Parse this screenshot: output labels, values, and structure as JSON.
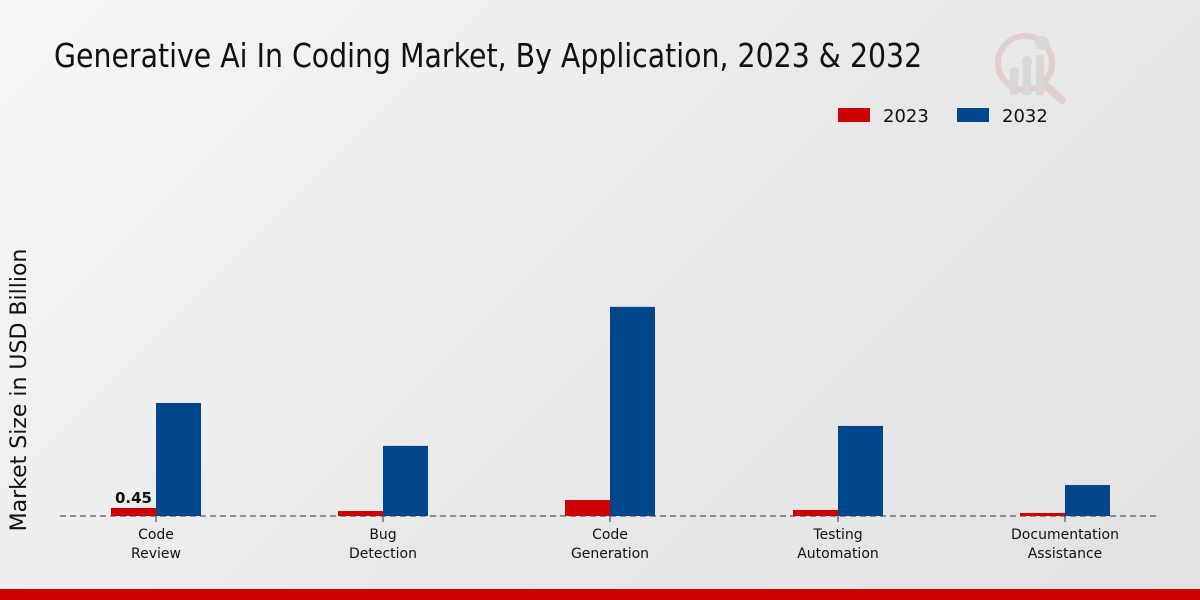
{
  "chart_data": {
    "type": "bar",
    "title": "Generative Ai In Coding Market, By Application, 2023 & 2032",
    "xlabel": "",
    "ylabel": "Market Size in USD Billion",
    "categories": [
      [
        "Code",
        "Review"
      ],
      [
        "Bug",
        "Detection"
      ],
      [
        "Code",
        "Generation"
      ],
      [
        "Testing",
        "Automation"
      ],
      [
        "Documentation",
        "Assistance"
      ]
    ],
    "series": [
      {
        "name": "2023",
        "color": "#cc0000",
        "values": [
          0.45,
          0.28,
          0.9,
          0.34,
          0.17
        ]
      },
      {
        "name": "2032",
        "color": "#00468b",
        "values": [
          6.35,
          3.94,
          11.75,
          5.06,
          1.74
        ]
      }
    ],
    "data_labels": [
      {
        "series": 0,
        "index": 0,
        "text": "0.45"
      }
    ],
    "ylim": [
      0,
      12.5
    ],
    "grid": false,
    "legend_position": "top-right"
  }
}
